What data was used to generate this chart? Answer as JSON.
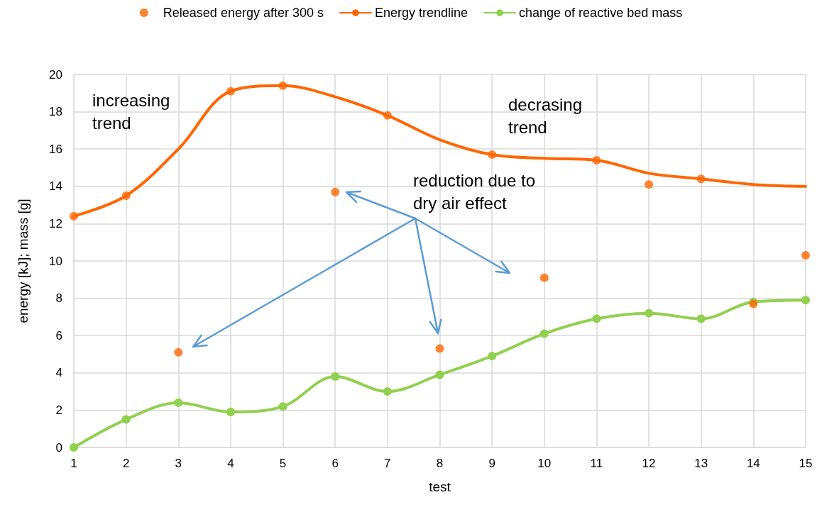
{
  "chart_data": {
    "type": "line",
    "xlabel": "test",
    "ylabel": "energy [kJ]; mass [g]",
    "x": [
      1,
      2,
      3,
      4,
      5,
      6,
      7,
      8,
      9,
      10,
      11,
      12,
      13,
      14,
      15
    ],
    "series": [
      {
        "name": "Released energy after 300 s",
        "type": "scatter",
        "marker": "circle",
        "color": "#ff6600",
        "values": [
          12.4,
          13.5,
          5.1,
          19.1,
          19.4,
          13.7,
          17.8,
          5.3,
          15.7,
          9.1,
          15.4,
          14.1,
          14.4,
          7.7,
          10.3
        ]
      },
      {
        "name": "Energy trendline",
        "marker": "none",
        "color": "#ff6600",
        "values": [
          12.4,
          13.5,
          16.0,
          19.1,
          19.4,
          18.8,
          17.8,
          16.5,
          15.7,
          15.5,
          15.4,
          14.7,
          14.4,
          14.1,
          14.0
        ]
      },
      {
        "name": "change of reactive bed mass",
        "marker": "circle",
        "color": "#92d050",
        "values": [
          0,
          1.5,
          2.4,
          1.9,
          2.2,
          3.8,
          3.0,
          3.9,
          4.9,
          6.1,
          6.9,
          7.2,
          6.9,
          7.8,
          7.9
        ]
      }
    ],
    "xlim": [
      1,
      15
    ],
    "xticks": [
      1,
      2,
      3,
      4,
      5,
      6,
      7,
      8,
      9,
      10,
      11,
      12,
      13,
      14,
      15
    ],
    "ylim": [
      0,
      20
    ],
    "yticks": [
      0,
      2,
      4,
      6,
      8,
      10,
      12,
      14,
      16,
      18,
      20
    ],
    "grid": true,
    "legend": "top",
    "line_style": "solid",
    "annotations": [
      "increasing\ntrend",
      "decrasing\ntrend",
      "reduction due to\ndry air effect"
    ]
  }
}
